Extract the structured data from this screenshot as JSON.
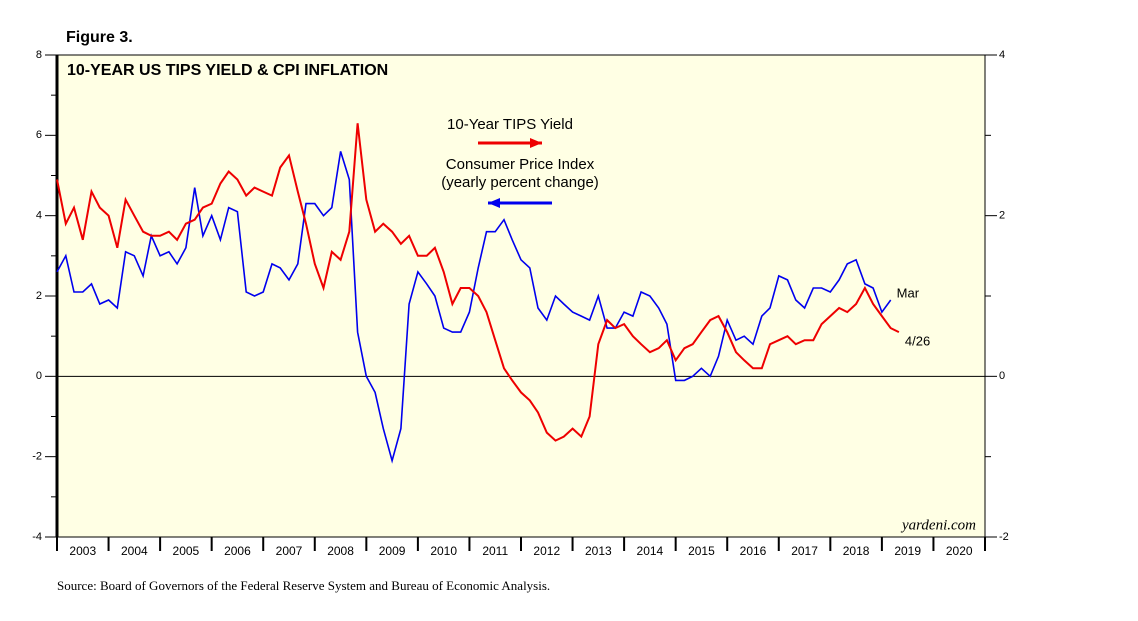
{
  "chart_data": {
    "type": "line",
    "figure_label": "Figure 3.",
    "title": "10-YEAR US TIPS YIELD & CPI INFLATION",
    "source": "Source: Board of Governors of the Federal Reserve System and Bureau of Economic Analysis.",
    "watermark": "yardeni.com",
    "xlim": [
      2003,
      2021
    ],
    "xticks": [
      {
        "value": 2003.5,
        "label": "2003"
      },
      {
        "value": 2004.5,
        "label": "2004"
      },
      {
        "value": 2005.5,
        "label": "2005"
      },
      {
        "value": 2006.5,
        "label": "2006"
      },
      {
        "value": 2007.5,
        "label": "2007"
      },
      {
        "value": 2008.5,
        "label": "2008"
      },
      {
        "value": 2009.5,
        "label": "2009"
      },
      {
        "value": 2010.5,
        "label": "2010"
      },
      {
        "value": 2011.5,
        "label": "2011"
      },
      {
        "value": 2012.5,
        "label": "2012"
      },
      {
        "value": 2013.5,
        "label": "2013"
      },
      {
        "value": 2014.5,
        "label": "2014"
      },
      {
        "value": 2015.5,
        "label": "2015"
      },
      {
        "value": 2016.5,
        "label": "2016"
      },
      {
        "value": 2017.5,
        "label": "2017"
      },
      {
        "value": 2018.5,
        "label": "2018"
      },
      {
        "value": 2019.5,
        "label": "2019"
      },
      {
        "value": 2020.5,
        "label": "2020"
      }
    ],
    "ylim": [
      -4,
      8
    ],
    "yticks": [
      -4,
      -2,
      0,
      2,
      4,
      6,
      8
    ],
    "y2lim": [
      -2,
      4
    ],
    "y2ticks": [
      -2,
      0,
      2,
      4
    ],
    "zero_line": true,
    "background": "#ffffe4",
    "series": [
      {
        "name": "Consumer Price Index",
        "name_note": "(yearly percent change)",
        "color": "#0000ee",
        "axis": "y",
        "end_label": "Mar",
        "x": [
          2003,
          2003.17,
          2003.33,
          2003.5,
          2003.67,
          2003.83,
          2004,
          2004.17,
          2004.33,
          2004.5,
          2004.67,
          2004.83,
          2005,
          2005.17,
          2005.33,
          2005.5,
          2005.67,
          2005.83,
          2006,
          2006.17,
          2006.33,
          2006.5,
          2006.67,
          2006.83,
          2007,
          2007.17,
          2007.33,
          2007.5,
          2007.67,
          2007.83,
          2008,
          2008.17,
          2008.33,
          2008.5,
          2008.67,
          2008.83,
          2009,
          2009.17,
          2009.33,
          2009.5,
          2009.67,
          2009.83,
          2010,
          2010.17,
          2010.33,
          2010.5,
          2010.67,
          2010.83,
          2011,
          2011.17,
          2011.33,
          2011.5,
          2011.67,
          2011.83,
          2012,
          2012.17,
          2012.33,
          2012.5,
          2012.67,
          2012.83,
          2013,
          2013.17,
          2013.33,
          2013.5,
          2013.67,
          2013.83,
          2014,
          2014.17,
          2014.33,
          2014.5,
          2014.67,
          2014.83,
          2015,
          2015.17,
          2015.33,
          2015.5,
          2015.67,
          2015.83,
          2016,
          2016.17,
          2016.33,
          2016.5,
          2016.67,
          2016.83,
          2017,
          2017.17,
          2017.33,
          2017.5,
          2017.67,
          2017.83,
          2018,
          2018.17,
          2018.33,
          2018.5,
          2018.67,
          2018.83,
          2019,
          2019.17
        ],
        "values": [
          2.6,
          3.0,
          2.1,
          2.1,
          2.3,
          1.8,
          1.9,
          1.7,
          3.1,
          3.0,
          2.5,
          3.5,
          3.0,
          3.1,
          2.8,
          3.2,
          4.7,
          3.5,
          4.0,
          3.4,
          4.2,
          4.1,
          2.1,
          2.0,
          2.1,
          2.8,
          2.7,
          2.4,
          2.8,
          4.3,
          4.3,
          4.0,
          4.2,
          5.6,
          4.9,
          1.1,
          0.0,
          -0.4,
          -1.3,
          -2.1,
          -1.3,
          1.8,
          2.6,
          2.3,
          2.0,
          1.2,
          1.1,
          1.1,
          1.6,
          2.7,
          3.6,
          3.6,
          3.9,
          3.4,
          2.9,
          2.7,
          1.7,
          1.4,
          2.0,
          1.8,
          1.6,
          1.5,
          1.4,
          2.0,
          1.2,
          1.2,
          1.6,
          1.5,
          2.1,
          2.0,
          1.7,
          1.3,
          -0.1,
          -0.1,
          0.0,
          0.2,
          0.0,
          0.5,
          1.4,
          0.9,
          1.0,
          0.8,
          1.5,
          1.7,
          2.5,
          2.4,
          1.9,
          1.7,
          2.2,
          2.2,
          2.1,
          2.4,
          2.8,
          2.9,
          2.3,
          2.2,
          1.6,
          1.9
        ]
      },
      {
        "name": "10-Year TIPS Yield",
        "color": "#ee0000",
        "axis": "y2",
        "end_label": "4/26",
        "x": [
          2003,
          2003.17,
          2003.33,
          2003.5,
          2003.67,
          2003.83,
          2004,
          2004.17,
          2004.33,
          2004.5,
          2004.67,
          2004.83,
          2005,
          2005.17,
          2005.33,
          2005.5,
          2005.67,
          2005.83,
          2006,
          2006.17,
          2006.33,
          2006.5,
          2006.67,
          2006.83,
          2007,
          2007.17,
          2007.33,
          2007.5,
          2007.67,
          2007.83,
          2008,
          2008.17,
          2008.33,
          2008.5,
          2008.67,
          2008.83,
          2009,
          2009.17,
          2009.33,
          2009.5,
          2009.67,
          2009.83,
          2010,
          2010.17,
          2010.33,
          2010.5,
          2010.67,
          2010.83,
          2011,
          2011.17,
          2011.33,
          2011.5,
          2011.67,
          2011.83,
          2012,
          2012.17,
          2012.33,
          2012.5,
          2012.67,
          2012.83,
          2013,
          2013.17,
          2013.33,
          2013.5,
          2013.67,
          2013.83,
          2014,
          2014.17,
          2014.33,
          2014.5,
          2014.67,
          2014.83,
          2015,
          2015.17,
          2015.33,
          2015.5,
          2015.67,
          2015.83,
          2016,
          2016.17,
          2016.33,
          2016.5,
          2016.67,
          2016.83,
          2017,
          2017.17,
          2017.33,
          2017.5,
          2017.67,
          2017.83,
          2018,
          2018.17,
          2018.33,
          2018.5,
          2018.67,
          2018.83,
          2019,
          2019.17,
          2019.33
        ],
        "values": [
          2.45,
          1.9,
          2.1,
          1.7,
          2.3,
          2.1,
          2.0,
          1.6,
          2.2,
          2.0,
          1.8,
          1.75,
          1.75,
          1.8,
          1.7,
          1.9,
          1.95,
          2.1,
          2.15,
          2.4,
          2.55,
          2.45,
          2.25,
          2.35,
          2.3,
          2.25,
          2.6,
          2.75,
          2.3,
          1.9,
          1.4,
          1.1,
          1.55,
          1.45,
          1.8,
          3.15,
          2.2,
          1.8,
          1.9,
          1.8,
          1.65,
          1.75,
          1.5,
          1.5,
          1.6,
          1.3,
          0.9,
          1.1,
          1.1,
          1.0,
          0.8,
          0.45,
          0.1,
          -0.05,
          -0.2,
          -0.3,
          -0.45,
          -0.7,
          -0.8,
          -0.75,
          -0.65,
          -0.75,
          -0.5,
          0.4,
          0.7,
          0.6,
          0.65,
          0.5,
          0.4,
          0.3,
          0.35,
          0.45,
          0.2,
          0.35,
          0.4,
          0.55,
          0.7,
          0.75,
          0.55,
          0.3,
          0.2,
          0.1,
          0.1,
          0.4,
          0.45,
          0.5,
          0.4,
          0.45,
          0.45,
          0.65,
          0.75,
          0.85,
          0.8,
          0.9,
          1.1,
          0.9,
          0.75,
          0.6,
          0.55
        ]
      }
    ]
  }
}
